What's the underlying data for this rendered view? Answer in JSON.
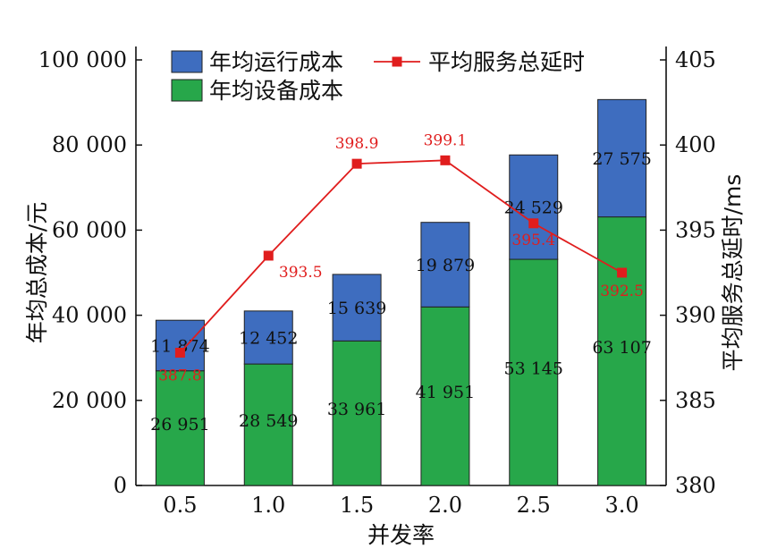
{
  "chart_data": {
    "type": "bar",
    "stacked": true,
    "categories": [
      "0.5",
      "1.0",
      "1.5",
      "2.0",
      "2.5",
      "3.0"
    ],
    "xlabel": "并发率",
    "ylabel": "年均总成本/元",
    "y2label": "平均服务总延时/ms",
    "ylim": [
      0,
      100000
    ],
    "y2lim": [
      380,
      405
    ],
    "yticks": [
      "0",
      "20 000",
      "40 000",
      "60 000",
      "80 000",
      "100 000"
    ],
    "y2ticks": [
      "380",
      "385",
      "390",
      "395",
      "400",
      "405"
    ],
    "legend_position": "top",
    "series": [
      {
        "name": "年均设备成本",
        "type": "bar",
        "color": "#27a74a",
        "values": [
          26951,
          28549,
          33961,
          41951,
          53145,
          63107
        ],
        "labels": [
          "26 951",
          "28 549",
          "33 961",
          "41 951",
          "53 145",
          "63 107"
        ]
      },
      {
        "name": "年均运行成本",
        "type": "bar",
        "color": "#3e6dbf",
        "values": [
          11874,
          12452,
          15639,
          19879,
          24529,
          27575
        ],
        "labels": [
          "11 874",
          "12 452",
          "15 639",
          "19 879",
          "24 529",
          "27 575"
        ]
      },
      {
        "name": "平均服务总延时",
        "type": "line",
        "axis": "right",
        "color": "#e01d1d",
        "values": [
          387.8,
          393.5,
          398.9,
          399.1,
          395.4,
          392.5
        ],
        "labels": [
          "387.8",
          "393.5",
          "398.9",
          "399.1",
          "395.4",
          "392.5"
        ]
      }
    ]
  }
}
